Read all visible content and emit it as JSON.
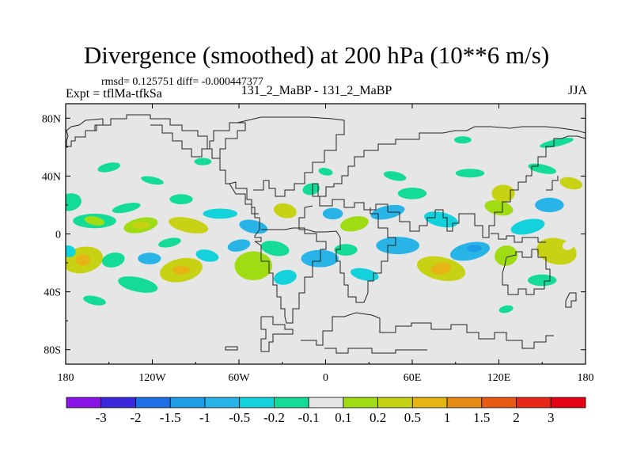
{
  "chart_data": {
    "type": "heatmap",
    "title": "Divergence (smoothed) at 200 hPa (10**6 m/s)",
    "stats_text": "rmsd= 0.125751 diff= -0.000447377",
    "experiment_text": "Expt = tflMa-tfkSa",
    "comparison_text": "131_2_MaBP - 131_2_MaBP",
    "season": "JJA",
    "xlim": [
      -180,
      180
    ],
    "ylim": [
      -90,
      90
    ],
    "x_ticks": [
      {
        "value": -180,
        "label": "180"
      },
      {
        "value": -120,
        "label": "120W"
      },
      {
        "value": -60,
        "label": "60W"
      },
      {
        "value": 0,
        "label": "0"
      },
      {
        "value": 60,
        "label": "60E"
      },
      {
        "value": 120,
        "label": "120E"
      },
      {
        "value": 180,
        "label": "180"
      }
    ],
    "y_ticks": [
      {
        "value": 80,
        "label": "80N"
      },
      {
        "value": 40,
        "label": "40N"
      },
      {
        "value": 0,
        "label": "0"
      },
      {
        "value": -40,
        "label": "40S"
      },
      {
        "value": -80,
        "label": "80S"
      }
    ],
    "background_color": "#e6e6e6",
    "colorbar": {
      "labels": [
        "-3",
        "-2",
        "-1.5",
        "-1",
        "-0.5",
        "-0.2",
        "-0.1",
        "0.1",
        "0.2",
        "0.5",
        "1",
        "1.5",
        "2",
        "3"
      ],
      "colors": [
        "#8a14e6",
        "#3c28dc",
        "#1e6ee6",
        "#1e9ce6",
        "#28b4e6",
        "#14d2dc",
        "#14dc96",
        "#e6e6e6",
        "#a0dc14",
        "#c8d214",
        "#e6b414",
        "#e68c14",
        "#e65a14",
        "#e62814",
        "#e60014"
      ]
    },
    "anomalies": [
      {
        "lon": -177,
        "lat": 22,
        "rlon": 8,
        "rlat": 6,
        "color": "#14dc96"
      },
      {
        "lon": -160,
        "lat": 9,
        "rlon": 15,
        "rlat": 5,
        "color": "#14dc96"
      },
      {
        "lon": -160,
        "lat": 9,
        "rlon": 7,
        "rlat": 3,
        "color": "#a0dc14"
      },
      {
        "lon": -128,
        "lat": 6,
        "rlon": 12,
        "rlat": 5,
        "color": "#a0dc14"
      },
      {
        "lon": -128,
        "lat": 6,
        "rlon": 6,
        "rlat": 2.5,
        "color": "#c8d214"
      },
      {
        "lon": -95,
        "lat": 6,
        "rlon": 14,
        "rlat": 5,
        "color": "#c8d214"
      },
      {
        "lon": -138,
        "lat": 18,
        "rlon": 10,
        "rlat": 3,
        "color": "#14dc96"
      },
      {
        "lon": -100,
        "lat": 24,
        "rlon": 8,
        "rlat": 3.5,
        "color": "#14dc96"
      },
      {
        "lon": -120,
        "lat": 37,
        "rlon": 8,
        "rlat": 2.5,
        "color": "#14dc96"
      },
      {
        "lon": -108,
        "lat": -6,
        "rlon": 8,
        "rlat": 3,
        "color": "#14dc96"
      },
      {
        "lon": -73,
        "lat": 14,
        "rlon": 12,
        "rlat": 3.5,
        "color": "#14d2dc"
      },
      {
        "lon": -50,
        "lat": 5,
        "rlon": 10,
        "rlat": 4.5,
        "color": "#28b4e6"
      },
      {
        "lon": -168,
        "lat": -18,
        "rlon": 14,
        "rlat": 9,
        "color": "#c8d214"
      },
      {
        "lon": -168,
        "lat": -18,
        "rlon": 5,
        "rlat": 4,
        "color": "#e6b414"
      },
      {
        "lon": -178,
        "lat": -12,
        "rlon": 5,
        "rlat": 4,
        "color": "#14d2dc"
      },
      {
        "lon": -147,
        "lat": -18,
        "rlon": 8,
        "rlat": 5,
        "color": "#14dc96"
      },
      {
        "lon": -122,
        "lat": -17,
        "rlon": 8,
        "rlat": 4,
        "color": "#28b4e6"
      },
      {
        "lon": -130,
        "lat": -35,
        "rlon": 14,
        "rlat": 5,
        "color": "#14dc96"
      },
      {
        "lon": -100,
        "lat": -25,
        "rlon": 15,
        "rlat": 8,
        "color": "#c8d214"
      },
      {
        "lon": -100,
        "lat": -25,
        "rlon": 6,
        "rlat": 3,
        "color": "#e6b414"
      },
      {
        "lon": -82,
        "lat": -15,
        "rlon": 8,
        "rlat": 4,
        "color": "#14d2dc"
      },
      {
        "lon": -60,
        "lat": -8,
        "rlon": 8,
        "rlat": 4,
        "color": "#28b4e6"
      },
      {
        "lon": -50,
        "lat": -22,
        "rlon": 13,
        "rlat": 10,
        "color": "#a0dc14"
      },
      {
        "lon": -35,
        "lat": -10,
        "rlon": 10,
        "rlat": 5,
        "color": "#14dc96"
      },
      {
        "lon": -28,
        "lat": -30,
        "rlon": 8,
        "rlat": 5,
        "color": "#14d2dc"
      },
      {
        "lon": -4,
        "lat": -17,
        "rlon": 13,
        "rlat": 6,
        "color": "#28b4e6"
      },
      {
        "lon": -28,
        "lat": 16,
        "rlon": 8,
        "rlat": 5,
        "color": "#c8d214"
      },
      {
        "lon": -10,
        "lat": 31,
        "rlon": 6,
        "rlat": 4,
        "color": "#14dc96"
      },
      {
        "lon": 5,
        "lat": 14,
        "rlon": 7,
        "rlat": 4,
        "color": "#28b4e6"
      },
      {
        "lon": 0,
        "lat": 43,
        "rlon": 5,
        "rlat": 2.5,
        "color": "#14dc96"
      },
      {
        "lon": 20,
        "lat": 7,
        "rlon": 10,
        "rlat": 5,
        "color": "#a0dc14"
      },
      {
        "lon": 14,
        "lat": -11,
        "rlon": 8,
        "rlat": 4,
        "color": "#14dc96"
      },
      {
        "lon": 27,
        "lat": -28,
        "rlon": 10,
        "rlat": 4,
        "color": "#14d2dc"
      },
      {
        "lon": 43,
        "lat": 15,
        "rlon": 12,
        "rlat": 4.5,
        "color": "#28b4e6"
      },
      {
        "lon": 50,
        "lat": -8,
        "rlon": 15,
        "rlat": 6,
        "color": "#28b4e6"
      },
      {
        "lon": 80,
        "lat": -24,
        "rlon": 17,
        "rlat": 8,
        "color": "#c8d214"
      },
      {
        "lon": 80,
        "lat": -24,
        "rlon": 7,
        "rlat": 4,
        "color": "#e6b414"
      },
      {
        "lon": 60,
        "lat": 28,
        "rlon": 10,
        "rlat": 4,
        "color": "#14dc96"
      },
      {
        "lon": 80,
        "lat": 10,
        "rlon": 12,
        "rlat": 5,
        "color": "#14d2dc"
      },
      {
        "lon": 100,
        "lat": -12,
        "rlon": 14,
        "rlat": 6,
        "color": "#28b4e6"
      },
      {
        "lon": 103,
        "lat": -10,
        "rlon": 5,
        "rlat": 2.5,
        "color": "#1e9ce6"
      },
      {
        "lon": 120,
        "lat": 18,
        "rlon": 10,
        "rlat": 5,
        "color": "#a0dc14"
      },
      {
        "lon": 125,
        "lat": -15,
        "rlon": 8,
        "rlat": 7,
        "color": "#a0dc14"
      },
      {
        "lon": 100,
        "lat": 42,
        "rlon": 10,
        "rlat": 3,
        "color": "#14dc96"
      },
      {
        "lon": 48,
        "lat": 40,
        "rlon": 8,
        "rlat": 3,
        "color": "#14dc96"
      },
      {
        "lon": 140,
        "lat": 5,
        "rlon": 12,
        "rlat": 5,
        "color": "#14d2dc"
      },
      {
        "lon": 155,
        "lat": 20,
        "rlon": 10,
        "rlat": 5,
        "color": "#28b4e6"
      },
      {
        "lon": 160,
        "lat": -12,
        "rlon": 14,
        "rlat": 9,
        "color": "#c8d214"
      },
      {
        "lon": 168,
        "lat": -8,
        "rlon": 4,
        "rlat": 3,
        "color": "#e6e6e6"
      },
      {
        "lon": 123,
        "lat": 28,
        "rlon": 8,
        "rlat": 6,
        "color": "#c8d214"
      },
      {
        "lon": 150,
        "lat": 45,
        "rlon": 10,
        "rlat": 3,
        "color": "#14dc96"
      },
      {
        "lon": 160,
        "lat": 63,
        "rlon": 12,
        "rlat": 2.5,
        "color": "#14dc96"
      },
      {
        "lon": 150,
        "lat": -32,
        "rlon": 10,
        "rlat": 4,
        "color": "#14dc96"
      },
      {
        "lon": 170,
        "lat": 35,
        "rlon": 8,
        "rlat": 4,
        "color": "#c8d214"
      },
      {
        "lon": -150,
        "lat": 46,
        "rlon": 8,
        "rlat": 3,
        "color": "#14dc96"
      },
      {
        "lon": -85,
        "lat": 50,
        "rlon": 6,
        "rlat": 2.5,
        "color": "#14dc96"
      },
      {
        "lon": -160,
        "lat": -46,
        "rlon": 8,
        "rlat": 3,
        "color": "#14dc96"
      },
      {
        "lon": 125,
        "lat": -52,
        "rlon": 5,
        "rlat": 2.5,
        "color": "#14dc96"
      },
      {
        "lon": 95,
        "lat": 65,
        "rlon": 6,
        "rlat": 2.5,
        "color": "#14dc96"
      }
    ]
  }
}
